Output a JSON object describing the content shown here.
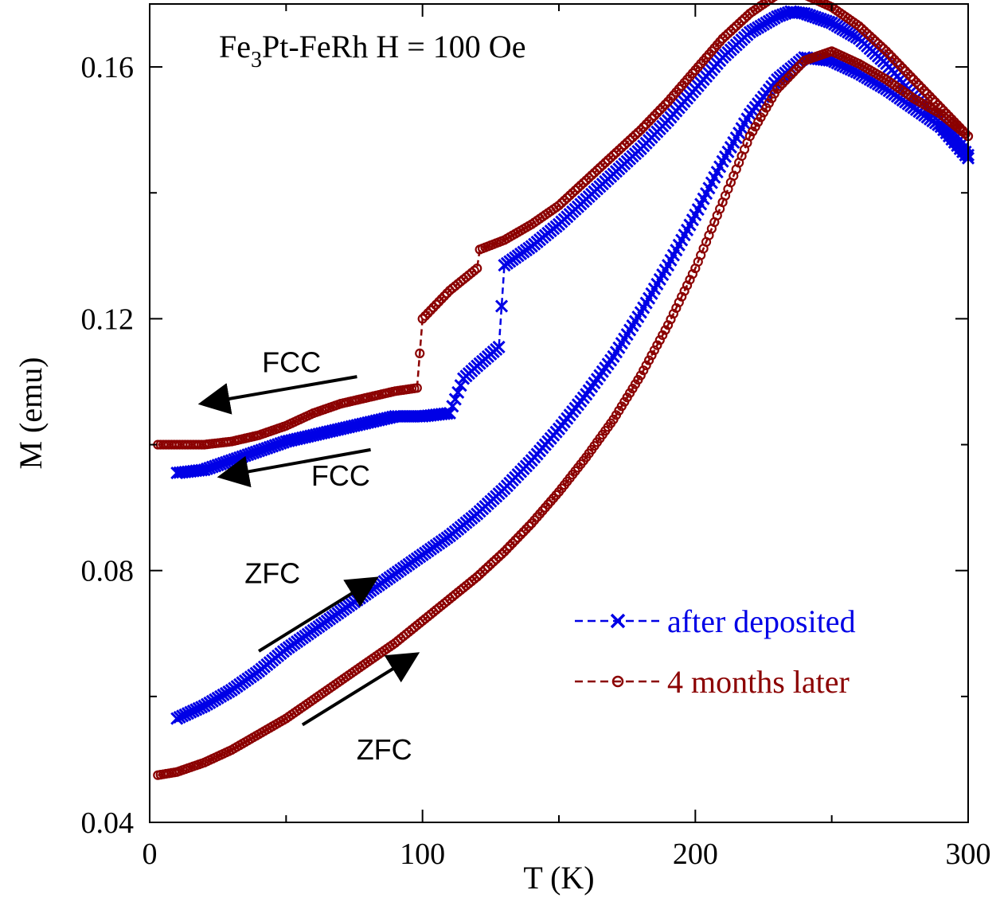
{
  "chart_data": {
    "type": "line",
    "title": "Fe3Pt-FeRh   H = 100 Oe",
    "title_parts": {
      "base": "Fe",
      "subscript": "3",
      "rest": "Pt-FeRh   H = 100 Oe"
    },
    "xlabel": "T (K)",
    "ylabel": "M (emu)",
    "xlim": [
      0,
      300
    ],
    "ylim": [
      0.04,
      0.17
    ],
    "xticks": [
      0,
      100,
      200,
      300
    ],
    "xtick_labels": [
      "0",
      "100",
      "200",
      "300"
    ],
    "yticks": [
      0.04,
      0.08,
      0.12,
      0.16
    ],
    "ytick_labels": [
      "0.04",
      "0.08",
      "0.12",
      "0.16"
    ],
    "grid": false,
    "legend_position": "bottom-right",
    "series": [
      {
        "name": "after deposited",
        "color": "#0000e6",
        "marker": "x",
        "line": "dashed",
        "branches": [
          {
            "label": "ZFC",
            "x": [
              10,
              20,
              30,
              40,
              50,
              60,
              70,
              80,
              90,
              100,
              110,
              120,
              130,
              140,
              150,
              160,
              170,
              180,
              190,
              200,
              210,
              220,
              230,
              240,
              250,
              260,
              270,
              280,
              290,
              300
            ],
            "y": [
              0.0565,
              0.0585,
              0.061,
              0.064,
              0.0675,
              0.0705,
              0.0735,
              0.0765,
              0.0795,
              0.0825,
              0.0855,
              0.089,
              0.093,
              0.0975,
              0.1025,
              0.108,
              0.114,
              0.121,
              0.1285,
              0.1365,
              0.145,
              0.1525,
              0.158,
              0.1615,
              0.161,
              0.159,
              0.1565,
              0.1535,
              0.1505,
              0.1455
            ]
          },
          {
            "label": "FCC",
            "x": [
              300,
              290,
              280,
              270,
              260,
              250,
              240,
              235,
              230,
              220,
              210,
              200,
              190,
              180,
              170,
              160,
              150,
              140,
              130,
              128,
              120,
              115,
              110,
              100,
              90,
              80,
              70,
              60,
              50,
              40,
              30,
              20,
              10
            ],
            "y": [
              0.146,
              0.151,
              0.1555,
              0.1605,
              0.1645,
              0.167,
              0.1685,
              0.1688,
              0.168,
              0.1655,
              0.1615,
              0.1565,
              0.1515,
              0.147,
              0.143,
              0.139,
              0.135,
              0.1315,
              0.1285,
              0.1155,
              0.1125,
              0.1105,
              0.105,
              0.1045,
              0.1045,
              0.1035,
              0.1025,
              0.1015,
              0.1005,
              0.099,
              0.0975,
              0.096,
              0.0955
            ]
          }
        ]
      },
      {
        "name": "4 months later",
        "color": "#8b0000",
        "marker": "o",
        "line": "dashed",
        "branches": [
          {
            "label": "ZFC",
            "x": [
              3,
              10,
              20,
              30,
              40,
              50,
              60,
              70,
              80,
              90,
              100,
              110,
              120,
              130,
              140,
              150,
              160,
              170,
              180,
              190,
              200,
              210,
              220,
              230,
              240,
              250,
              260,
              270,
              280,
              290,
              300
            ],
            "y": [
              0.0475,
              0.048,
              0.0495,
              0.0515,
              0.054,
              0.0565,
              0.0595,
              0.0625,
              0.0655,
              0.0685,
              0.072,
              0.0755,
              0.079,
              0.083,
              0.0875,
              0.0925,
              0.098,
              0.104,
              0.111,
              0.119,
              0.128,
              0.1385,
              0.149,
              0.1565,
              0.161,
              0.1625,
              0.1605,
              0.158,
              0.155,
              0.1525,
              0.149
            ]
          },
          {
            "label": "FCC",
            "x": [
              300,
              290,
              280,
              270,
              260,
              250,
              240,
              235,
              230,
              220,
              210,
              200,
              190,
              180,
              170,
              160,
              150,
              140,
              130,
              121,
              120,
              110,
              100,
              98,
              90,
              80,
              70,
              60,
              50,
              40,
              30,
              20,
              10,
              3
            ],
            "y": [
              0.149,
              0.1535,
              0.158,
              0.1625,
              0.1665,
              0.1695,
              0.1715,
              0.1718,
              0.1715,
              0.1685,
              0.1645,
              0.1595,
              0.1545,
              0.15,
              0.146,
              0.142,
              0.138,
              0.135,
              0.1325,
              0.131,
              0.128,
              0.1245,
              0.12,
              0.109,
              0.1085,
              0.1075,
              0.1065,
              0.105,
              0.103,
              0.1015,
              0.1005,
              0.1,
              0.1,
              0.1
            ]
          }
        ]
      }
    ],
    "annotations": [
      {
        "text": "FCC",
        "x": 52,
        "y": 0.1115
      },
      {
        "text": "FCC",
        "x": 70,
        "y": 0.0935
      },
      {
        "text": "ZFC",
        "x": 45,
        "y": 0.078
      },
      {
        "text": "ZFC",
        "x": 86,
        "y": 0.05
      }
    ],
    "arrows": [
      {
        "x1": 76,
        "y1": 0.1108,
        "x2": 20,
        "y2": 0.1066
      },
      {
        "x1": 81,
        "y1": 0.0992,
        "x2": 27,
        "y2": 0.095
      },
      {
        "x1": 40,
        "y1": 0.0672,
        "x2": 82,
        "y2": 0.0785
      },
      {
        "x1": 56,
        "y1": 0.0555,
        "x2": 97,
        "y2": 0.0665
      }
    ]
  }
}
